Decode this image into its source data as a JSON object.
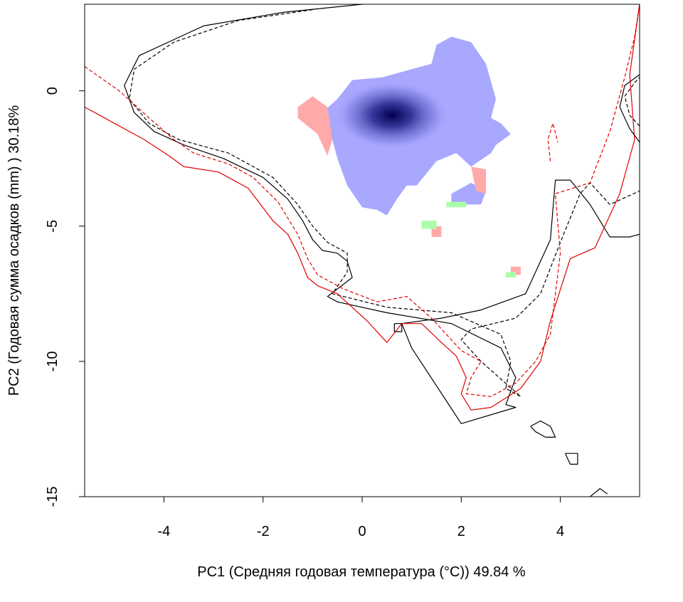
{
  "chart_data": {
    "type": "contour-density",
    "xlabel": "PC1 (Средняя годовая температура (°C)) 49.84 %",
    "ylabel": "PC2 (Годовая сумма осадков  (mm) ) 30.18%",
    "xlim": [
      -5.6,
      5.6
    ],
    "ylim": [
      -15,
      3.2
    ],
    "x_ticks": [
      -4,
      -2,
      0,
      2,
      4
    ],
    "x_tick_labels": [
      "-4",
      "-2",
      "0",
      "2",
      "4"
    ],
    "y_ticks": [
      0,
      -5,
      -10,
      -15
    ],
    "y_tick_labels": [
      "0",
      "-5",
      "-10",
      "-15"
    ],
    "grid": false,
    "legend": "none",
    "colors": {
      "black_contour": "#000000",
      "red_contour": "#e00000",
      "overlap": "#a8a8ff",
      "only_first": "#ffaaaa",
      "only_second": "#aaffaa",
      "density_peak": "#000050"
    },
    "series": [
      {
        "color": "#000000",
        "dash": "solid",
        "x": [
          0,
          -1.6,
          -3.2,
          -4.5,
          -4.8,
          -4.6,
          -4.2,
          -3.6,
          -2.8,
          -2.0,
          -1.5,
          -1.2,
          -1.0,
          -0.8,
          -0.5,
          -0.3,
          -0.2,
          -0.7,
          -0.5,
          0.5,
          1.8,
          2.8,
          3.1,
          2.9,
          3.1,
          2.0,
          1.0,
          0.8,
          1.6,
          2.4,
          3.3,
          3.8,
          3.9,
          4.2,
          4.6,
          5.0,
          5.4,
          5.6
        ],
        "y": [
          3.2,
          2.9,
          2.4,
          1.3,
          0.2,
          -0.8,
          -1.5,
          -2.0,
          -2.5,
          -3.2,
          -4.0,
          -4.8,
          -5.5,
          -5.9,
          -6.0,
          -6.3,
          -6.9,
          -7.6,
          -7.8,
          -8.2,
          -8.6,
          -9.5,
          -10.6,
          -11.6,
          -11.7,
          -12.3,
          -9.5,
          -8.6,
          -8.4,
          -8.1,
          -7.5,
          -5.5,
          -3.3,
          -3.3,
          -4.2,
          -5.4,
          -5.4,
          -5.3
        ]
      },
      {
        "color": "#000000",
        "dash": "dashed",
        "x": [
          -1.0,
          -2.5,
          -3.8,
          -4.6,
          -4.7,
          -4.3,
          -3.7,
          -2.7,
          -1.8,
          -1.3,
          -1.0,
          -0.7,
          -0.3,
          -0.3,
          -0.6,
          0.5,
          1.8,
          2.8,
          3.0,
          2.9,
          3.2,
          2.4,
          2.0,
          2.2,
          3.1,
          3.6,
          4.0,
          4.4,
          4.6,
          5.0,
          5.6
        ],
        "y": [
          3.0,
          2.6,
          1.8,
          0.8,
          -0.3,
          -1.2,
          -1.8,
          -2.3,
          -3.2,
          -4.2,
          -5.0,
          -5.6,
          -6.0,
          -6.7,
          -7.5,
          -8.0,
          -8.2,
          -9.0,
          -10.0,
          -11.0,
          -11.3,
          -10.0,
          -9.2,
          -8.8,
          -8.4,
          -7.5,
          -5.6,
          -3.8,
          -3.4,
          -4.2,
          -3.7
        ]
      },
      {
        "color": "#e00000",
        "dash": "solid",
        "x": [
          -5.6,
          -5.0,
          -4.4,
          -3.9,
          -3.6,
          -2.9,
          -2.3,
          -1.8,
          -1.5,
          -1.3,
          -1.1,
          -0.9,
          -0.5,
          0.1,
          0.5,
          0.8,
          1.2,
          1.6,
          1.9,
          2.1,
          2.0,
          2.2,
          2.6,
          3.2,
          3.6,
          3.8,
          4.2,
          4.7,
          5.2,
          5.5,
          5.4,
          5.6
        ],
        "y": [
          -0.6,
          -1.2,
          -1.8,
          -2.4,
          -2.8,
          -3.0,
          -3.6,
          -4.8,
          -5.3,
          -6.0,
          -6.9,
          -7.2,
          -7.5,
          -8.5,
          -9.3,
          -8.6,
          -8.6,
          -9.3,
          -9.8,
          -10.6,
          -11.2,
          -11.8,
          -11.7,
          -11.0,
          -10.0,
          -8.5,
          -6.2,
          -5.8,
          -3.8,
          -1.8,
          0.6,
          3.2
        ]
      },
      {
        "color": "#e00000",
        "dash": "dashed",
        "x": [
          -5.6,
          -4.9,
          -4.3,
          -3.8,
          -3.4,
          -2.7,
          -2.2,
          -1.7,
          -1.3,
          -1.1,
          -0.9,
          -0.4,
          0.3,
          0.9,
          1.4,
          1.8,
          2.0,
          2.4,
          2.2,
          2.1,
          2.6,
          3.1,
          3.5,
          3.8,
          4.0,
          3.9,
          4.6,
          5.0,
          5.3,
          5.5,
          5.6
        ],
        "y": [
          0.9,
          0.0,
          -1.0,
          -1.8,
          -2.3,
          -2.7,
          -3.2,
          -4.1,
          -5.3,
          -6.2,
          -6.8,
          -7.3,
          -7.8,
          -7.6,
          -8.4,
          -9.2,
          -9.6,
          -10.0,
          -10.6,
          -11.2,
          -11.3,
          -10.8,
          -10.0,
          -9.0,
          -6.0,
          -3.8,
          -3.4,
          -1.5,
          0.5,
          2.0,
          3.2
        ]
      },
      {
        "color": "#000000",
        "dash": "solid",
        "x": [
          5.6,
          5.4,
          5.2,
          5.3,
          5.6
        ],
        "y": [
          -1.9,
          -1.4,
          -0.6,
          0.2,
          0.6
        ]
      },
      {
        "color": "#000000",
        "dash": "dashed",
        "x": [
          5.6,
          5.4,
          5.3,
          5.5,
          5.6
        ],
        "y": [
          -1.3,
          -0.9,
          -0.2,
          0.3,
          0.5
        ]
      },
      {
        "color": "#e00000",
        "dash": "dashed",
        "x": [
          3.8,
          3.75,
          3.85,
          3.95
        ],
        "y": [
          -2.6,
          -1.8,
          -1.2,
          -1.9
        ]
      },
      {
        "color": "#000000",
        "dash": "solid",
        "x": [
          3.4,
          3.6,
          3.8,
          3.9,
          3.7,
          3.5,
          3.4
        ],
        "y": [
          -12.4,
          -12.2,
          -12.4,
          -12.8,
          -12.8,
          -12.6,
          -12.4
        ]
      },
      {
        "color": "#000000",
        "dash": "solid",
        "x": [
          4.1,
          4.35,
          4.35,
          4.2,
          4.1
        ],
        "y": [
          -13.4,
          -13.4,
          -13.8,
          -13.8,
          -13.4
        ]
      },
      {
        "color": "#000000",
        "dash": "solid",
        "x": [
          4.6,
          4.8,
          4.95
        ],
        "y": [
          -15.0,
          -14.7,
          -14.9
        ]
      },
      {
        "color": "#000000",
        "dash": "solid",
        "x": [
          0.65,
          0.8,
          0.8,
          0.65,
          0.65
        ],
        "y": [
          -8.6,
          -8.6,
          -8.9,
          -8.9,
          -8.6
        ]
      }
    ],
    "regions": [
      {
        "class": "overlap",
        "x": [
          -0.8,
          -0.5,
          -0.2,
          0.4,
          1.0,
          1.4,
          1.5,
          1.8,
          2.2,
          2.5,
          2.7,
          2.6,
          2.8,
          3.0,
          2.7,
          2.6,
          2.2,
          1.9,
          1.5,
          1.1,
          0.9,
          0.7,
          0.5,
          0.3,
          0.0,
          -0.3,
          -0.5,
          -0.6,
          -0.8
        ],
        "y": [
          -0.8,
          -0.3,
          0.4,
          0.5,
          0.8,
          1.0,
          1.7,
          2.0,
          1.8,
          1.0,
          -0.3,
          -1.0,
          -1.2,
          -1.6,
          -2.0,
          -2.3,
          -2.8,
          -2.3,
          -2.6,
          -3.5,
          -3.5,
          -4.0,
          -4.6,
          -4.4,
          -4.3,
          -3.5,
          -2.5,
          -1.8,
          -0.8
        ]
      },
      {
        "class": "overlap",
        "x": [
          1.8,
          2.2,
          2.5,
          2.4,
          1.8
        ],
        "y": [
          -3.8,
          -3.4,
          -3.7,
          -4.2,
          -4.2
        ]
      },
      {
        "class": "only_first",
        "x": [
          -1.3,
          -1.0,
          -0.7,
          -0.6,
          -0.7,
          -0.9,
          -1.3
        ],
        "y": [
          -0.6,
          -0.2,
          -0.6,
          -1.8,
          -2.4,
          -1.6,
          -1.0
        ]
      },
      {
        "class": "only_first",
        "x": [
          2.2,
          2.5,
          2.5,
          2.3
        ],
        "y": [
          -2.8,
          -2.9,
          -3.8,
          -3.7
        ]
      },
      {
        "class": "only_first",
        "x": [
          1.4,
          1.6,
          1.6,
          1.4
        ],
        "y": [
          -5.0,
          -5.0,
          -5.4,
          -5.4
        ]
      },
      {
        "class": "only_first",
        "x": [
          3.0,
          3.2,
          3.2,
          3.0
        ],
        "y": [
          -6.5,
          -6.5,
          -6.8,
          -6.8
        ]
      },
      {
        "class": "only_second",
        "x": [
          1.2,
          1.5,
          1.5,
          1.2
        ],
        "y": [
          -4.8,
          -4.8,
          -5.1,
          -5.1
        ]
      },
      {
        "class": "only_second",
        "x": [
          2.9,
          3.1,
          3.1,
          2.9
        ],
        "y": [
          -6.7,
          -6.7,
          -6.9,
          -6.9
        ]
      },
      {
        "class": "only_second",
        "x": [
          1.7,
          2.1,
          2.1,
          1.7
        ],
        "y": [
          -4.1,
          -4.1,
          -4.3,
          -4.3
        ]
      }
    ],
    "peak": {
      "x": 0.6,
      "y": -0.9
    }
  }
}
